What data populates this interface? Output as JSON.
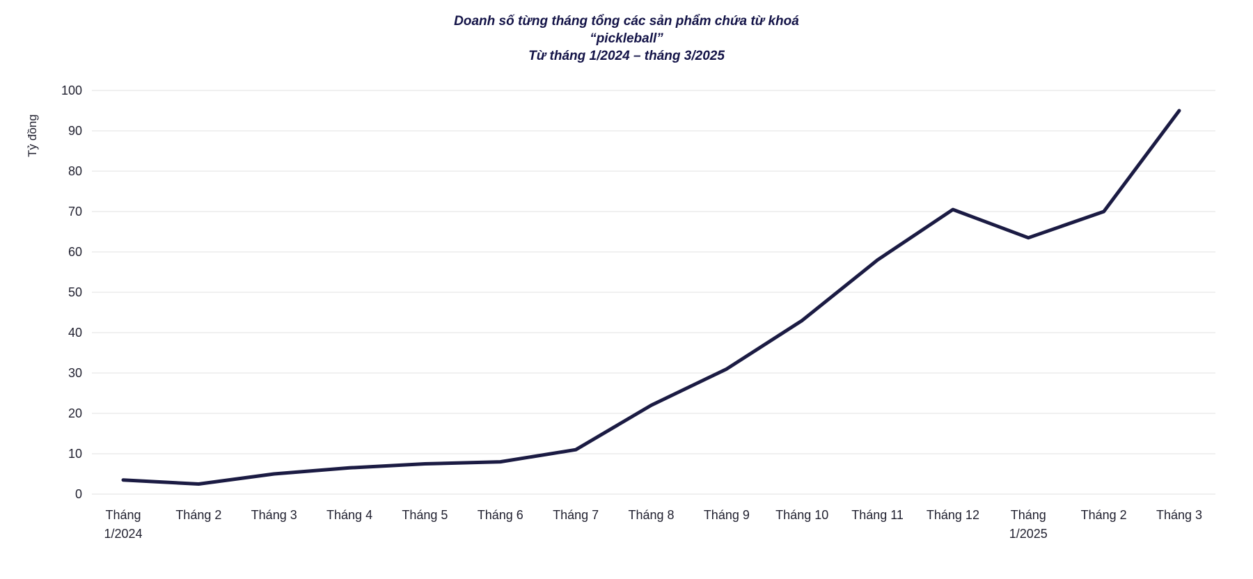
{
  "chart_data": {
    "type": "line",
    "title": "Doanh số từng tháng tổng các sản phẩm chứa từ khoá “pickleball” Từ tháng 1/2024 – tháng 3/2025",
    "title_lines": [
      "Doanh số từng tháng tổng các sản phẩm chứa từ khoá",
      "“pickleball”",
      "Từ tháng 1/2024 – tháng 3/2025"
    ],
    "xlabel": "",
    "ylabel": "Tỷ đồng",
    "categories": [
      "Tháng\n1/2024",
      "Tháng 2",
      "Tháng 3",
      "Tháng 4",
      "Tháng 5",
      "Tháng 6",
      "Tháng 7",
      "Tháng 8",
      "Tháng 9",
      "Tháng 10",
      "Tháng 11",
      "Tháng 12",
      "Tháng\n1/2025",
      "Tháng 2",
      "Tháng 3"
    ],
    "values": [
      3.5,
      2.5,
      5,
      6.5,
      7.5,
      8,
      11,
      22,
      31,
      43,
      58,
      70.5,
      63.5,
      70,
      95
    ],
    "ylim": [
      0,
      100
    ],
    "yticks": [
      0,
      10,
      20,
      30,
      40,
      50,
      60,
      70,
      80,
      90,
      100
    ],
    "grid": true,
    "legend": "none",
    "colors": {
      "line": "#1b1b43",
      "grid": "#e0e0e0",
      "title": "#131347",
      "axis_text": "#1f1f2e"
    }
  }
}
